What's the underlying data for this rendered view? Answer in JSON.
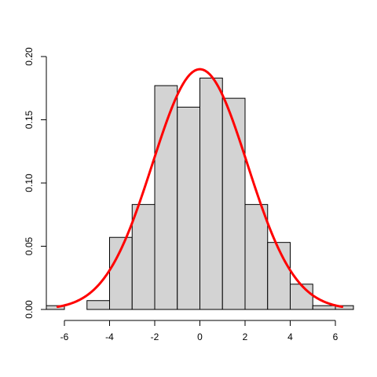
{
  "chart_data": {
    "type": "bar",
    "subtype": "histogram",
    "title": "",
    "xlabel": "",
    "ylabel": "",
    "xlim": [
      -6.8,
      6.8
    ],
    "ylim": [
      0,
      0.2
    ],
    "x_ticks": [
      -6,
      -4,
      -2,
      0,
      2,
      4,
      6
    ],
    "y_ticks": [
      0.0,
      0.05,
      0.1,
      0.15,
      0.2
    ],
    "x_tick_labels": [
      "-6",
      "-4",
      "-2",
      "0",
      "2",
      "4",
      "6"
    ],
    "y_tick_labels": [
      "0.00",
      "0.05",
      "0.10",
      "0.15",
      "0.20"
    ],
    "bins": [
      {
        "x0": -7,
        "x1": -6,
        "value": 0.003
      },
      {
        "x0": -6,
        "x1": -5,
        "value": 0.0
      },
      {
        "x0": -5,
        "x1": -4,
        "value": 0.007
      },
      {
        "x0": -4,
        "x1": -3,
        "value": 0.057
      },
      {
        "x0": -3,
        "x1": -2,
        "value": 0.083
      },
      {
        "x0": -2,
        "x1": -1,
        "value": 0.177
      },
      {
        "x0": -1,
        "x1": 0,
        "value": 0.16
      },
      {
        "x0": 0,
        "x1": 1,
        "value": 0.183
      },
      {
        "x0": 1,
        "x1": 2,
        "value": 0.167
      },
      {
        "x0": 2,
        "x1": 3,
        "value": 0.083
      },
      {
        "x0": 3,
        "x1": 4,
        "value": 0.053
      },
      {
        "x0": 4,
        "x1": 5,
        "value": 0.02
      },
      {
        "x0": 5,
        "x1": 6,
        "value": 0.003
      },
      {
        "x0": 6,
        "x1": 7,
        "value": 0.003
      }
    ],
    "curve": {
      "type": "normal-density",
      "mean": 0,
      "sd": 2.1,
      "x_range": [
        -6.3,
        6.3
      ]
    },
    "colors": {
      "bar_fill": "#d3d3d3",
      "bar_stroke": "#000000",
      "curve": "#ff0000"
    },
    "grid": false,
    "legend": "none"
  }
}
